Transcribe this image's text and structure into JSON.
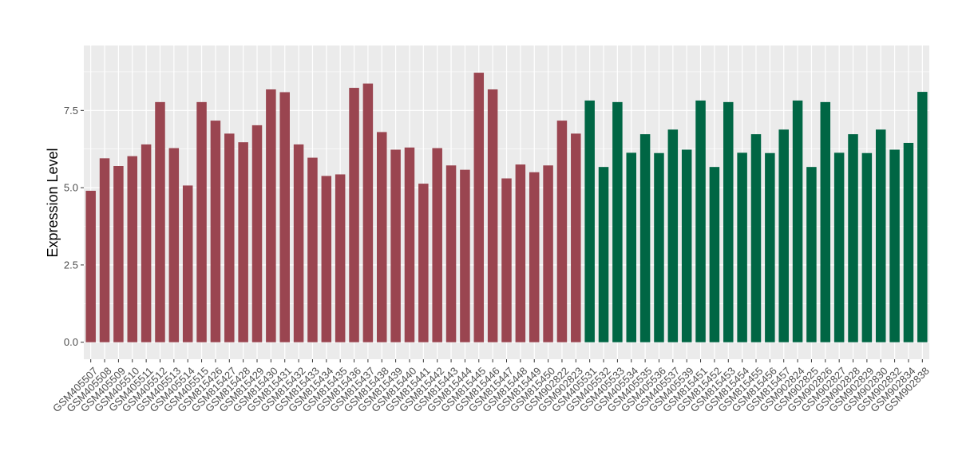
{
  "colors": {
    "panel_background": "#ebebeb",
    "grid": "#ffffff",
    "group_a": "#9a4550",
    "group_b": "#006644"
  },
  "chart_data": {
    "type": "bar",
    "title": "",
    "xlabel": "",
    "ylabel": "Expression Level",
    "ylim": [
      -0.55,
      9.6
    ],
    "yticks": [
      0.0,
      2.5,
      5.0,
      7.5
    ],
    "ytick_labels": [
      "0.0",
      "2.5",
      "5.0",
      "7.5"
    ],
    "grid": true,
    "legend": "none",
    "categories": [
      "GSM405507",
      "GSM405508",
      "GSM405509",
      "GSM405510",
      "GSM405511",
      "GSM405512",
      "GSM405513",
      "GSM405514",
      "GSM405515",
      "GSM815426",
      "GSM815427",
      "GSM815428",
      "GSM815429",
      "GSM815430",
      "GSM815431",
      "GSM815432",
      "GSM815433",
      "GSM815434",
      "GSM815435",
      "GSM815436",
      "GSM815437",
      "GSM815438",
      "GSM815439",
      "GSM815440",
      "GSM815441",
      "GSM815442",
      "GSM815443",
      "GSM815444",
      "GSM815445",
      "GSM815446",
      "GSM815447",
      "GSM815448",
      "GSM815449",
      "GSM815450",
      "GSM902822",
      "GSM902823",
      "GSM405531",
      "GSM405532",
      "GSM405533",
      "GSM405534",
      "GSM405535",
      "GSM405536",
      "GSM405537",
      "GSM405539",
      "GSM815451",
      "GSM815452",
      "GSM815453",
      "GSM815454",
      "GSM815455",
      "GSM815456",
      "GSM815457",
      "GSM902824",
      "GSM902825",
      "GSM902826",
      "GSM902827",
      "GSM902828",
      "GSM902829",
      "GSM902830",
      "GSM902832",
      "GSM902834",
      "GSM902838"
    ],
    "values": [
      4.9,
      5.95,
      5.7,
      6.02,
      6.4,
      7.77,
      6.28,
      5.07,
      7.77,
      7.17,
      6.75,
      6.47,
      7.02,
      8.18,
      8.09,
      6.4,
      5.97,
      5.38,
      5.43,
      8.23,
      8.37,
      6.8,
      6.23,
      6.3,
      5.13,
      6.28,
      5.72,
      5.58,
      8.72,
      8.18,
      5.3,
      5.75,
      5.5,
      5.72,
      7.17,
      6.75,
      7.82,
      5.67,
      7.77,
      6.13,
      6.73,
      6.12,
      6.88,
      6.23,
      7.82,
      5.67,
      7.77,
      6.13,
      6.73,
      6.12,
      6.88,
      7.82,
      5.67,
      7.77,
      6.13,
      6.73,
      6.12,
      6.88,
      6.23,
      6.45,
      8.1
    ],
    "groups": [
      "a",
      "a",
      "a",
      "a",
      "a",
      "a",
      "a",
      "a",
      "a",
      "a",
      "a",
      "a",
      "a",
      "a",
      "a",
      "a",
      "a",
      "a",
      "a",
      "a",
      "a",
      "a",
      "a",
      "a",
      "a",
      "a",
      "a",
      "a",
      "a",
      "a",
      "a",
      "a",
      "a",
      "a",
      "a",
      "a",
      "b",
      "b",
      "b",
      "b",
      "b",
      "b",
      "b",
      "b",
      "b",
      "b",
      "b",
      "b",
      "b",
      "b",
      "b",
      "b",
      "b",
      "b",
      "b",
      "b",
      "b",
      "b",
      "b",
      "b",
      "b"
    ]
  }
}
